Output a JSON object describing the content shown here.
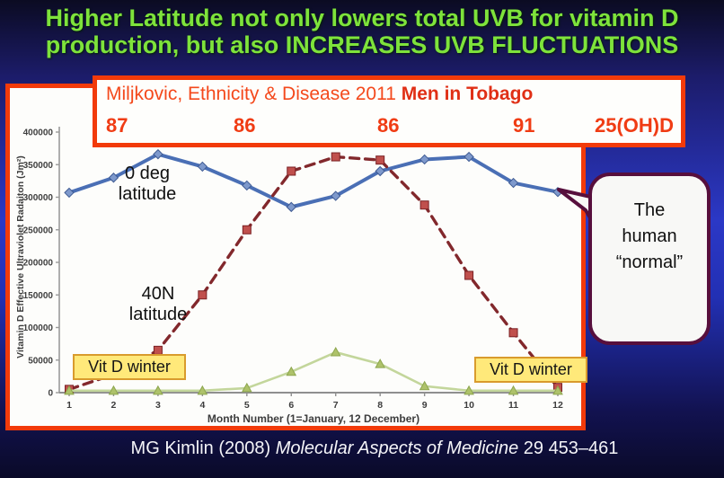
{
  "title": {
    "line1": "Higher Latitude not only lowers total UVB for vitamin D",
    "line2": "production, but also INCREASES UVB FLUCTUATIONS",
    "color": "#7ee33b"
  },
  "header_box": {
    "study": "Miljkovic, Ethnicity & Disease 2011",
    "cohort": "Men in Tobago",
    "values": [
      "87",
      "86",
      "86",
      "91"
    ],
    "values_label": "25(OH)D"
  },
  "annotations": {
    "series1_line1": "0 deg",
    "series1_line2": "latitude",
    "series2_line1": "40N",
    "series2_line2": "latitude",
    "vit_d_winter_left": "Vit D winter",
    "vit_d_winter_right": "Vit D winter",
    "bubble_line1": "The",
    "bubble_line2": "human",
    "bubble_line3": "“normal”"
  },
  "citation": {
    "pre": "MG Kimlin (2008) ",
    "journal": "Molecular Aspects of Medicine",
    "post": " 29 453–461"
  },
  "chart_data": {
    "type": "line",
    "x": [
      1,
      2,
      3,
      4,
      5,
      6,
      7,
      8,
      9,
      10,
      11,
      12
    ],
    "xlabel": "Month Number (1=January, 12 December)",
    "ylabel": "Vitamin D Effective Ultraviolet Radaiton (Jm²)",
    "ylim": [
      0,
      400000
    ],
    "ytick_step": 50000,
    "grid": false,
    "legend": "inline-annotations",
    "series": [
      {
        "name": "0 deg latitude",
        "line_color": "#4a6fb5",
        "marker_color": "#7e99cc",
        "dash": "solid",
        "marker": "diamond",
        "values": [
          307000,
          330000,
          366000,
          347000,
          318000,
          285000,
          302000,
          340000,
          358000,
          362000,
          322000,
          308000
        ]
      },
      {
        "name": "40N latitude",
        "line_color": "#82282c",
        "marker_color": "#c0504d",
        "dash": "dashed",
        "marker": "square",
        "values": [
          5000,
          28000,
          65000,
          150000,
          250000,
          340000,
          362000,
          357000,
          288000,
          180000,
          92000,
          8000
        ]
      },
      {
        "name": "",
        "line_color": "#c3d69b",
        "marker_color": "#aec26a",
        "dash": "solid",
        "marker": "triangle",
        "values": [
          3000,
          3000,
          3000,
          3000,
          7000,
          32000,
          62000,
          44000,
          10000,
          3000,
          3000,
          3000
        ]
      }
    ]
  }
}
